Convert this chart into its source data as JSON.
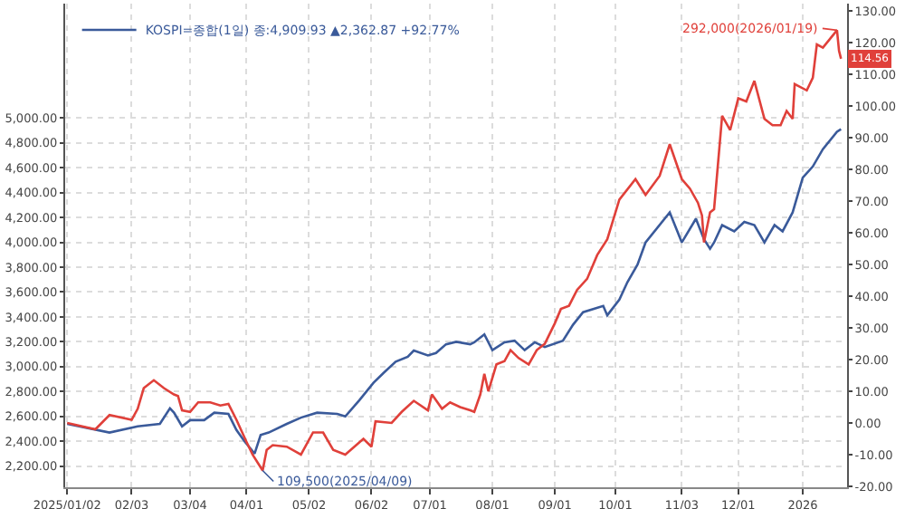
{
  "chart_data": {
    "type": "line",
    "grid": true,
    "legend": "top left",
    "marker": "none",
    "line_style": "solid",
    "xlim": [
      "2025-01-01",
      "2026-01-24"
    ],
    "xticks": [
      {
        "value": "2025-01-02",
        "label": "2025/01/02"
      },
      {
        "value": "2025-02-03",
        "label": "02/03"
      },
      {
        "value": "2025-03-04",
        "label": "03/04"
      },
      {
        "value": "2025-04-01",
        "label": "04/01"
      },
      {
        "value": "2025-05-02",
        "label": "05/02"
      },
      {
        "value": "2025-06-02",
        "label": "06/02"
      },
      {
        "value": "2025-07-01",
        "label": "07/01"
      },
      {
        "value": "2025-08-01",
        "label": "08/01"
      },
      {
        "value": "2025-09-01",
        "label": "09/01"
      },
      {
        "value": "2025-10-01",
        "label": "10/01"
      },
      {
        "value": "2025-11-03",
        "label": "11/03"
      },
      {
        "value": "2025-12-01",
        "label": "12/01"
      },
      {
        "value": "2026-01-02",
        "label": "2026"
      }
    ],
    "ylim": [
      2030,
      5920
    ],
    "yticks": [
      {
        "value": 2200,
        "label": "2,200.00"
      },
      {
        "value": 2400,
        "label": "2,400.00"
      },
      {
        "value": 2600,
        "label": "2,600.00"
      },
      {
        "value": 2800,
        "label": "2,800.00"
      },
      {
        "value": 3000,
        "label": "3,000.00"
      },
      {
        "value": 3200,
        "label": "3,200.00"
      },
      {
        "value": 3400,
        "label": "3,400.00"
      },
      {
        "value": 3600,
        "label": "3,600.00"
      },
      {
        "value": 3800,
        "label": "3,800.00"
      },
      {
        "value": 4000,
        "label": "4,000.00"
      },
      {
        "value": 4200,
        "label": "4,200.00"
      },
      {
        "value": 4400,
        "label": "4,400.00"
      },
      {
        "value": 4600,
        "label": "4,600.00"
      },
      {
        "value": 4800,
        "label": "4,800.00"
      },
      {
        "value": 5000,
        "label": "5,000.00"
      }
    ],
    "y2lim": [
      -20.3,
      132.4
    ],
    "y2ticks": [
      {
        "value": -20,
        "label": "-20.00"
      },
      {
        "value": -10,
        "label": "-10.00"
      },
      {
        "value": 0,
        "label": "0.00"
      },
      {
        "value": 10,
        "label": "10.00"
      },
      {
        "value": 20,
        "label": "20.00"
      },
      {
        "value": 30,
        "label": "30.00"
      },
      {
        "value": 40,
        "label": "40.00"
      },
      {
        "value": 50,
        "label": "50.00"
      },
      {
        "value": 60,
        "label": "60.00"
      },
      {
        "value": 70,
        "label": "70.00"
      },
      {
        "value": 80,
        "label": "80.00"
      },
      {
        "value": 90,
        "label": "90.00"
      },
      {
        "value": 100,
        "label": "100.00"
      },
      {
        "value": 110,
        "label": "110.00"
      },
      {
        "value": 120,
        "label": "120.00"
      },
      {
        "value": 130,
        "label": "130.00"
      }
    ],
    "series": [
      {
        "name": "KOSPI=종합(1일) 종:4,909.93 ▲2,362.87 +92.77%",
        "color": "#3a5a9a",
        "x": [
          "2025-01-02",
          "2025-01-23",
          "2025-02-06",
          "2025-02-17",
          "2025-02-22",
          "2025-02-24",
          "2025-02-28",
          "2025-03-04",
          "2025-03-11",
          "2025-03-16",
          "2025-03-23",
          "2025-03-27",
          "2025-03-31",
          "2025-04-05",
          "2025-04-08",
          "2025-04-12",
          "2025-04-21",
          "2025-04-28",
          "2025-05-06",
          "2025-05-16",
          "2025-05-20",
          "2025-05-27",
          "2025-06-03",
          "2025-06-08",
          "2025-06-14",
          "2025-06-20",
          "2025-06-23",
          "2025-06-30",
          "2025-07-04",
          "2025-07-09",
          "2025-07-14",
          "2025-07-21",
          "2025-07-23",
          "2025-07-28",
          "2025-08-01",
          "2025-08-07",
          "2025-08-12",
          "2025-08-17",
          "2025-08-22",
          "2025-08-27",
          "2025-09-05",
          "2025-09-10",
          "2025-09-15",
          "2025-09-20",
          "2025-09-25",
          "2025-09-27",
          "2025-10-03",
          "2025-10-07",
          "2025-10-12",
          "2025-10-16",
          "2025-10-28",
          "2025-11-03",
          "2025-11-10",
          "2025-11-14",
          "2025-11-17",
          "2025-11-19",
          "2025-11-23",
          "2025-11-29",
          "2025-12-04",
          "2025-12-09",
          "2025-12-14",
          "2025-12-19",
          "2025-12-23",
          "2025-12-28",
          "2026-01-02",
          "2026-01-07",
          "2026-01-12",
          "2026-01-19",
          "2026-01-21"
        ],
        "values": [
          2540,
          2470,
          2520,
          2540,
          2665,
          2630,
          2520,
          2570,
          2570,
          2630,
          2620,
          2490,
          2400,
          2300,
          2450,
          2470,
          2540,
          2590,
          2630,
          2620,
          2600,
          2730,
          2870,
          2950,
          3040,
          3080,
          3130,
          3090,
          3110,
          3180,
          3200,
          3180,
          3196,
          3260,
          3133,
          3196,
          3209,
          3133,
          3196,
          3158,
          3209,
          3337,
          3438,
          3464,
          3489,
          3413,
          3540,
          3680,
          3821,
          3999,
          4241,
          3999,
          4190,
          4024,
          3948,
          3999,
          4139,
          4088,
          4164,
          4139,
          3999,
          4139,
          4088,
          4241,
          4521,
          4610,
          4750,
          4890,
          4910
        ]
      },
      {
        "color": "#e0403a",
        "axis": "y2",
        "x": [
          "2025-01-02",
          "2025-01-16",
          "2025-01-23",
          "2025-02-03",
          "2025-02-06",
          "2025-02-09",
          "2025-02-14",
          "2025-02-19",
          "2025-02-24",
          "2025-02-26",
          "2025-02-28",
          "2025-03-04",
          "2025-03-08",
          "2025-03-14",
          "2025-03-19",
          "2025-03-23",
          "2025-03-27",
          "2025-04-01",
          "2025-04-04",
          "2025-04-09",
          "2025-04-11",
          "2025-04-14",
          "2025-04-21",
          "2025-04-28",
          "2025-05-04",
          "2025-05-09",
          "2025-05-14",
          "2025-05-20",
          "2025-05-29",
          "2025-06-02",
          "2025-06-04",
          "2025-06-12",
          "2025-06-17",
          "2025-06-23",
          "2025-06-30",
          "2025-07-02",
          "2025-07-07",
          "2025-07-11",
          "2025-07-16",
          "2025-07-21",
          "2025-07-23",
          "2025-07-26",
          "2025-07-28",
          "2025-07-30",
          "2025-08-03",
          "2025-08-07",
          "2025-08-10",
          "2025-08-14",
          "2025-08-19",
          "2025-08-23",
          "2025-08-27",
          "2025-09-01",
          "2025-09-04",
          "2025-09-08",
          "2025-09-12",
          "2025-09-17",
          "2025-09-22",
          "2025-09-27",
          "2025-10-03",
          "2025-10-11",
          "2025-10-16",
          "2025-10-23",
          "2025-10-28",
          "2025-11-03",
          "2025-11-07",
          "2025-11-11",
          "2025-11-13",
          "2025-11-14",
          "2025-11-17",
          "2025-11-19",
          "2025-11-23",
          "2025-11-27",
          "2025-12-01",
          "2025-12-05",
          "2025-12-09",
          "2025-12-14",
          "2025-12-18",
          "2025-12-22",
          "2025-12-25",
          "2025-12-28",
          "2025-12-29",
          "2026-01-04",
          "2026-01-07",
          "2026-01-09",
          "2026-01-12",
          "2026-01-19",
          "2026-01-20",
          "2026-01-21"
        ],
        "values": [
          0,
          -2,
          2.5,
          1,
          4.5,
          11,
          13.5,
          11,
          9,
          8.5,
          4,
          3.5,
          6.5,
          6.5,
          5.5,
          6,
          1,
          -6,
          -10,
          -15,
          -8.5,
          -7,
          -7.5,
          -10,
          -3,
          -3,
          -8.5,
          -10,
          -5,
          -7.5,
          0.5,
          0,
          3.5,
          7,
          4,
          9,
          4.5,
          6.5,
          5,
          4,
          3.5,
          9,
          15.5,
          10,
          18.5,
          19.5,
          23,
          20.5,
          18.5,
          23,
          25,
          31.5,
          36,
          37,
          42,
          45.5,
          53,
          58,
          70.5,
          77,
          72,
          78,
          88,
          77,
          74,
          69.5,
          65.5,
          57,
          66.5,
          67.5,
          97,
          92.5,
          102.5,
          101.5,
          108,
          96,
          94,
          94,
          98.5,
          96,
          107,
          105,
          109,
          119.5,
          118.5,
          124,
          117.5,
          115
        ]
      }
    ],
    "annotations": [
      "109,500(2025/04/09)",
      "292,000(2026/01/19)",
      "114.56"
    ]
  }
}
